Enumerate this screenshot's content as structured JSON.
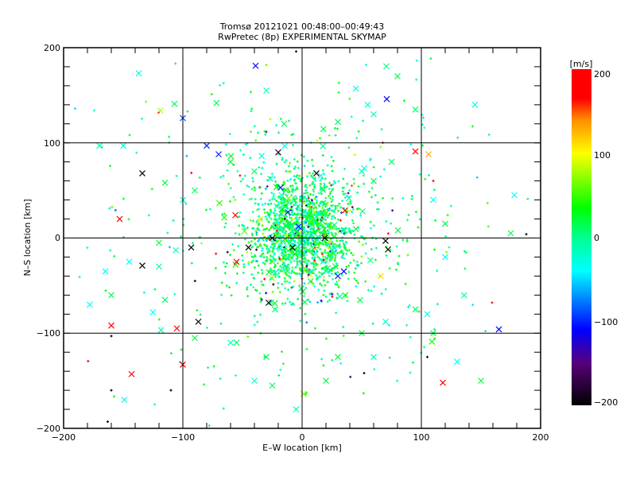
{
  "chart_data": {
    "type": "scatter",
    "title": "Tromsø 20121021 00:48:00–00:49:43",
    "subtitle": "RwPretec (8p) EXPERIMENTAL SKYMAP",
    "xlabel": "E–W location [km]",
    "ylabel": "N–S location [km]",
    "xlim": [
      -200,
      200
    ],
    "ylim": [
      -200,
      200
    ],
    "xticks": [
      "−200",
      "−100",
      "0",
      "100",
      "200"
    ],
    "yticks": [
      "−200",
      "−100",
      "0",
      "100",
      "200"
    ],
    "grid_at": [
      -100,
      0,
      100
    ],
    "colorbar": {
      "label": "[m/s]",
      "range": [
        -200,
        200
      ],
      "ticks": [
        "200",
        "100",
        "0",
        "−100",
        "−200"
      ],
      "stops": [
        {
          "v": -200,
          "c": "#000000"
        },
        {
          "v": -150,
          "c": "#58007a"
        },
        {
          "v": -110,
          "c": "#0000ff"
        },
        {
          "v": -40,
          "c": "#00ffff"
        },
        {
          "v": 0,
          "c": "#00ff90"
        },
        {
          "v": 35,
          "c": "#00ff00"
        },
        {
          "v": 100,
          "c": "#ffff00"
        },
        {
          "v": 140,
          "c": "#ff8c00"
        },
        {
          "v": 165,
          "c": "#ff0000"
        },
        {
          "v": 200,
          "c": "#ff0000"
        }
      ]
    },
    "points_note_fields": [
      "x_km",
      "y_km",
      "velocity_m_s",
      "marker"
    ],
    "points": [
      [
        -39,
        181,
        -110,
        "x"
      ],
      [
        71,
        146,
        -110,
        "x"
      ],
      [
        -137,
        173,
        -30,
        "x"
      ],
      [
        -107,
        141,
        10,
        "x"
      ],
      [
        -100,
        126,
        -90,
        "x"
      ],
      [
        -150,
        97,
        -20,
        "x"
      ],
      [
        -134,
        68,
        -200,
        "x"
      ],
      [
        -153,
        20,
        180,
        "x"
      ],
      [
        -160,
        -92,
        180,
        "x"
      ],
      [
        -143,
        -143,
        170,
        "x"
      ],
      [
        -149,
        -170,
        -30,
        "x"
      ],
      [
        -100,
        -133,
        190,
        "x"
      ],
      [
        -134,
        -29,
        -200,
        "x"
      ],
      [
        -87,
        -88,
        -200,
        "x"
      ],
      [
        -56,
        24,
        170,
        "x"
      ],
      [
        -28,
        -68,
        -200,
        "x"
      ],
      [
        95,
        91,
        180,
        "x"
      ],
      [
        106,
        88,
        130,
        "x"
      ],
      [
        165,
        -96,
        -110,
        "x"
      ],
      [
        118,
        -152,
        170,
        "x"
      ],
      [
        72,
        -12,
        -200,
        "x"
      ],
      [
        70,
        -3,
        -200,
        "x"
      ],
      [
        19,
        0,
        -200,
        "x"
      ],
      [
        -25,
        0,
        -200,
        "x"
      ],
      [
        -45,
        -10,
        -200,
        "x"
      ],
      [
        -93,
        -10,
        -200,
        "x"
      ],
      [
        36,
        29,
        170,
        "x"
      ],
      [
        35,
        -35,
        -110,
        "x"
      ],
      [
        30,
        -40,
        -100,
        "x"
      ],
      [
        66,
        -40,
        110,
        "x"
      ],
      [
        -80,
        97,
        -100,
        "x"
      ],
      [
        -70,
        88,
        -100,
        "x"
      ],
      [
        -20,
        90,
        -170,
        "x"
      ],
      [
        12,
        68,
        -200,
        "x"
      ],
      [
        -18,
        53,
        -100,
        "x"
      ],
      [
        -12,
        27,
        -100,
        "x"
      ],
      [
        -3,
        12,
        -110,
        "x"
      ],
      [
        -8,
        -10,
        -200,
        "x"
      ],
      [
        -55,
        -25,
        180,
        "x"
      ],
      [
        -105,
        -95,
        190,
        "x"
      ],
      [
        -30,
        155,
        -20,
        "x"
      ],
      [
        -15,
        120,
        10,
        "x"
      ],
      [
        30,
        122,
        10,
        "x"
      ],
      [
        55,
        140,
        -30,
        "x"
      ],
      [
        60,
        130,
        -20,
        "x"
      ],
      [
        45,
        157,
        -30,
        "x"
      ],
      [
        80,
        170,
        20,
        "x"
      ],
      [
        95,
        135,
        10,
        "x"
      ],
      [
        145,
        140,
        -30,
        "x"
      ],
      [
        175,
        5,
        20,
        "x"
      ],
      [
        -178,
        -70,
        -40,
        "x"
      ],
      [
        -165,
        -35,
        -40,
        "x"
      ],
      [
        -145,
        -25,
        -40,
        "x"
      ],
      [
        -120,
        -5,
        20,
        "x"
      ],
      [
        -115,
        -65,
        10,
        "x"
      ],
      [
        -125,
        -78,
        -40,
        "x"
      ],
      [
        -160,
        -60,
        10,
        "x"
      ],
      [
        -170,
        97,
        -10,
        "x"
      ],
      [
        -115,
        58,
        20,
        "x"
      ],
      [
        -120,
        -30,
        -20,
        "x"
      ],
      [
        -55,
        -110,
        10,
        "x"
      ],
      [
        -30,
        -125,
        10,
        "x"
      ],
      [
        -25,
        -155,
        10,
        "x"
      ],
      [
        -5,
        -180,
        -20,
        "x"
      ],
      [
        70,
        -88,
        -20,
        "x"
      ],
      [
        95,
        -75,
        10,
        "x"
      ],
      [
        105,
        -80,
        -40,
        "x"
      ],
      [
        150,
        -150,
        20,
        "x"
      ],
      [
        130,
        -130,
        -40,
        "x"
      ],
      [
        110,
        -100,
        20,
        "x"
      ],
      [
        50,
        -100,
        20,
        "x"
      ],
      [
        60,
        -125,
        -20,
        "x"
      ],
      [
        30,
        -125,
        20,
        "x"
      ],
      [
        20,
        -150,
        20,
        "x"
      ],
      [
        -40,
        -150,
        -20,
        "x"
      ],
      [
        -60,
        -110,
        -20,
        "x"
      ],
      [
        -90,
        -105,
        20,
        "x"
      ],
      [
        50,
        70,
        -20,
        "x"
      ],
      [
        60,
        60,
        20,
        "x"
      ],
      [
        75,
        80,
        10,
        "x"
      ],
      [
        110,
        40,
        -40,
        "x"
      ],
      [
        120,
        15,
        20,
        "x"
      ],
      [
        120,
        -20,
        -40,
        "x"
      ],
      [
        -90,
        50,
        10,
        "x"
      ],
      [
        -100,
        40,
        -20,
        "x"
      ],
      [
        -60,
        80,
        20,
        "x"
      ],
      [
        -40,
        70,
        10,
        "x"
      ],
      [
        178,
        45,
        -40,
        "x"
      ],
      [
        -110,
        -160,
        -200,
        "+"
      ],
      [
        -160,
        -160,
        -200,
        "+"
      ],
      [
        -163,
        -193,
        -200,
        "+"
      ],
      [
        -160,
        -103,
        -200,
        "+"
      ],
      [
        188,
        4,
        -200,
        "+"
      ],
      [
        -5,
        196,
        -200,
        "+"
      ],
      [
        110,
        60,
        180,
        "+"
      ],
      [
        105,
        -125,
        -200,
        "+"
      ],
      [
        52,
        -142,
        -200,
        "+"
      ]
    ],
    "cluster": {
      "center_km": [
        0,
        5
      ],
      "core_sigma_km": [
        22,
        30
      ],
      "core_count": 1500,
      "halo_sigma_km": [
        75,
        80
      ],
      "halo_count": 450,
      "velocity_mean": 10,
      "velocity_sigma": 30
    }
  }
}
